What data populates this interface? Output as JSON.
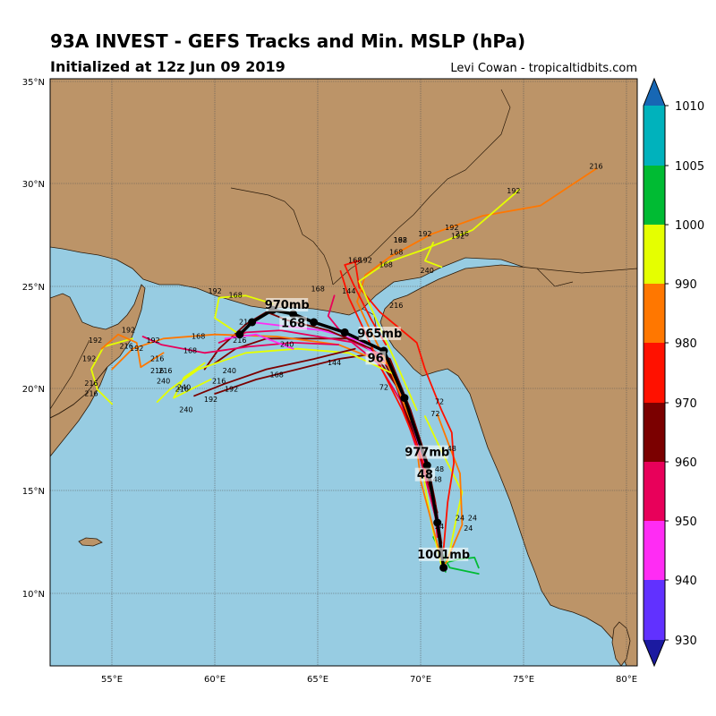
{
  "header": {
    "title": "93A INVEST - GEFS Tracks and Min. MSLP (hPa)",
    "subtitle": "Initialized at 12z Jun 09 2019",
    "credit": "Levi Cowan - tropicaltidbits.com"
  },
  "map": {
    "lon_range": [
      52,
      80.5
    ],
    "lat_range": [
      6.5,
      35.2
    ],
    "lat_ticks": [
      "35°N",
      "30°N",
      "25°N",
      "20°N",
      "15°N",
      "10°N"
    ],
    "lon_ticks": [
      "55°E",
      "60°E",
      "65°E",
      "70°E",
      "75°E",
      "80°E"
    ],
    "colors": {
      "ocean": "#97cce2",
      "land": "#bc9468",
      "border": "#3a2a1a",
      "grid": "#555555"
    }
  },
  "colorbar": {
    "ticks": [
      "1010",
      "1005",
      "1000",
      "990",
      "980",
      "970",
      "960",
      "950",
      "940",
      "930"
    ],
    "colors": [
      "#1767b4",
      "#00b2bc",
      "#00bb33",
      "#e5ff00",
      "#ff7700",
      "#ff1100",
      "#7b0000",
      "#e8005a",
      "#ff2cf4",
      "#6131ff",
      "#1b1aa0"
    ]
  },
  "mean_track": {
    "labels": [
      {
        "text": "1001mb",
        "lon": 71.1,
        "lat": 11.8
      },
      {
        "text": "48",
        "lon": 70.2,
        "lat": 15.7
      },
      {
        "text": "977mb",
        "lon": 70.3,
        "lat": 16.8
      },
      {
        "text": "96",
        "lon": 67.8,
        "lat": 21.4
      },
      {
        "text": "965mb",
        "lon": 68.0,
        "lat": 22.6
      },
      {
        "text": "168",
        "lon": 63.8,
        "lat": 23.1
      },
      {
        "text": "970mb",
        "lon": 63.5,
        "lat": 24.0
      }
    ],
    "points": [
      {
        "lon": 71.1,
        "lat": 11.3
      },
      {
        "lon": 70.8,
        "lat": 13.5
      },
      {
        "lon": 70.3,
        "lat": 16.3
      },
      {
        "lon": 69.2,
        "lat": 19.6
      },
      {
        "lon": 68.2,
        "lat": 21.9
      },
      {
        "lon": 66.3,
        "lat": 22.8
      },
      {
        "lon": 64.8,
        "lat": 23.3
      },
      {
        "lon": 63.8,
        "lat": 23.7
      },
      {
        "lon": 62.8,
        "lat": 23.9
      },
      {
        "lon": 61.8,
        "lat": 23.3
      },
      {
        "lon": 61.2,
        "lat": 22.7
      }
    ]
  },
  "track_labels": [
    {
      "text": "24",
      "lon": 71.9,
      "lat": 13.6
    },
    {
      "text": "24",
      "lon": 72.5,
      "lat": 13.6
    },
    {
      "text": "24",
      "lon": 72.3,
      "lat": 13.1
    },
    {
      "text": "24",
      "lon": 70.9,
      "lat": 13.2
    },
    {
      "text": "48",
      "lon": 71.5,
      "lat": 17.0
    },
    {
      "text": "48",
      "lon": 70.9,
      "lat": 16.0
    },
    {
      "text": "48",
      "lon": 70.8,
      "lat": 15.5
    },
    {
      "text": "72",
      "lon": 70.7,
      "lat": 18.7
    },
    {
      "text": "72",
      "lon": 70.9,
      "lat": 19.3
    },
    {
      "text": "72",
      "lon": 68.2,
      "lat": 20.0
    },
    {
      "text": "144",
      "lon": 65.8,
      "lat": 21.2
    },
    {
      "text": "144",
      "lon": 66.5,
      "lat": 24.7
    },
    {
      "text": "168",
      "lon": 65.0,
      "lat": 24.8
    },
    {
      "text": "168",
      "lon": 61.0,
      "lat": 24.5
    },
    {
      "text": "168",
      "lon": 59.2,
      "lat": 22.5
    },
    {
      "text": "168",
      "lon": 58.8,
      "lat": 21.8
    },
    {
      "text": "168",
      "lon": 63.0,
      "lat": 20.6
    },
    {
      "text": "168",
      "lon": 66.8,
      "lat": 26.2
    },
    {
      "text": "168",
      "lon": 68.3,
      "lat": 26.0
    },
    {
      "text": "168",
      "lon": 69.0,
      "lat": 27.2
    },
    {
      "text": "168",
      "lon": 68.8,
      "lat": 26.6
    },
    {
      "text": "192",
      "lon": 60.0,
      "lat": 24.7
    },
    {
      "text": "192",
      "lon": 57.0,
      "lat": 22.3
    },
    {
      "text": "192",
      "lon": 55.8,
      "lat": 22.8
    },
    {
      "text": "192",
      "lon": 54.2,
      "lat": 22.3
    },
    {
      "text": "192",
      "lon": 53.9,
      "lat": 21.4
    },
    {
      "text": "192",
      "lon": 56.2,
      "lat": 21.9
    },
    {
      "text": "192",
      "lon": 59.8,
      "lat": 19.4
    },
    {
      "text": "192",
      "lon": 60.8,
      "lat": 19.9
    },
    {
      "text": "192",
      "lon": 69.0,
      "lat": 27.2
    },
    {
      "text": "192",
      "lon": 71.5,
      "lat": 27.8
    },
    {
      "text": "192",
      "lon": 71.8,
      "lat": 27.4
    },
    {
      "text": "192",
      "lon": 70.2,
      "lat": 27.5
    },
    {
      "text": "192",
      "lon": 74.5,
      "lat": 29.6
    },
    {
      "text": "192",
      "lon": 67.3,
      "lat": 26.2
    },
    {
      "text": "216",
      "lon": 78.5,
      "lat": 30.8
    },
    {
      "text": "216",
      "lon": 72.0,
      "lat": 27.5
    },
    {
      "text": "216",
      "lon": 68.8,
      "lat": 24.0
    },
    {
      "text": "216",
      "lon": 55.7,
      "lat": 22.0
    },
    {
      "text": "216",
      "lon": 57.6,
      "lat": 20.8
    },
    {
      "text": "216",
      "lon": 57.2,
      "lat": 20.8
    },
    {
      "text": "216",
      "lon": 54.0,
      "lat": 20.2
    },
    {
      "text": "216",
      "lon": 54.0,
      "lat": 19.7
    },
    {
      "text": "216",
      "lon": 61.5,
      "lat": 23.2
    },
    {
      "text": "216",
      "lon": 61.2,
      "lat": 22.3
    },
    {
      "text": "216",
      "lon": 60.2,
      "lat": 20.3
    },
    {
      "text": "216",
      "lon": 58.4,
      "lat": 19.9
    },
    {
      "text": "216",
      "lon": 57.2,
      "lat": 21.4
    },
    {
      "text": "240",
      "lon": 57.5,
      "lat": 20.3
    },
    {
      "text": "240",
      "lon": 58.5,
      "lat": 20.0
    },
    {
      "text": "240",
      "lon": 58.6,
      "lat": 18.9
    },
    {
      "text": "240",
      "lon": 60.7,
      "lat": 20.8
    },
    {
      "text": "240",
      "lon": 63.5,
      "lat": 22.1
    },
    {
      "text": "240",
      "lon": 70.3,
      "lat": 25.7
    }
  ],
  "tracks": [
    {
      "color": "#00bb33",
      "pts": [
        [
          71.2,
          11.1
        ],
        [
          71.0,
          12.0
        ],
        [
          70.6,
          12.8
        ],
        [
          71.4,
          11.3
        ],
        [
          72.8,
          11.0
        ]
      ]
    },
    {
      "color": "#00bb33",
      "pts": [
        [
          71.0,
          11.5
        ],
        [
          71.8,
          11.7
        ],
        [
          72.6,
          11.8
        ],
        [
          72.8,
          11.3
        ]
      ]
    },
    {
      "color": "#e5ff00",
      "pts": [
        [
          71.0,
          11.4
        ],
        [
          70.5,
          13.5
        ],
        [
          70.2,
          15.3
        ],
        [
          70.0,
          17.0
        ]
      ]
    },
    {
      "color": "#e5ff00",
      "pts": [
        [
          71.3,
          11.6
        ],
        [
          71.7,
          13.6
        ],
        [
          72.0,
          15.0
        ],
        [
          71.0,
          17.0
        ],
        [
          70.2,
          18.7
        ]
      ]
    },
    {
      "color": "#ff7700",
      "pts": [
        [
          71.0,
          11.7
        ],
        [
          70.5,
          13.6
        ],
        [
          70.0,
          15.5
        ],
        [
          69.8,
          17.2
        ],
        [
          69.5,
          18.5
        ]
      ]
    },
    {
      "color": "#ff7700",
      "pts": [
        [
          71.2,
          11.5
        ],
        [
          72.0,
          13.4
        ],
        [
          71.9,
          15.9
        ],
        [
          71.4,
          17.2
        ],
        [
          70.8,
          18.8
        ]
      ]
    },
    {
      "color": "#ff1100",
      "pts": [
        [
          71.0,
          12.0
        ],
        [
          70.8,
          13.5
        ],
        [
          70.4,
          15.8
        ],
        [
          69.8,
          17.8
        ],
        [
          69.2,
          19.2
        ]
      ]
    },
    {
      "color": "#ff1100",
      "pts": [
        [
          71.1,
          12.2
        ],
        [
          71.3,
          14.5
        ],
        [
          71.6,
          16.4
        ],
        [
          71.5,
          17.9
        ],
        [
          71.0,
          19.0
        ],
        [
          70.2,
          21.0
        ],
        [
          69.8,
          22.3
        ],
        [
          68.0,
          23.8
        ],
        [
          67.0,
          25.0
        ],
        [
          66.8,
          26.3
        ]
      ]
    },
    {
      "color": "#7b0000",
      "pts": [
        [
          71.0,
          12.5
        ],
        [
          70.7,
          14.5
        ],
        [
          70.3,
          16.5
        ],
        [
          69.5,
          19.0
        ],
        [
          68.5,
          21.5
        ],
        [
          66.5,
          22.5
        ],
        [
          64.5,
          22.5
        ],
        [
          62.5,
          22.5
        ],
        [
          61.0,
          22.0
        ],
        [
          60.0,
          21.3
        ]
      ]
    },
    {
      "color": "#7b0000",
      "pts": [
        [
          70.9,
          13.0
        ],
        [
          70.4,
          15.0
        ],
        [
          69.8,
          17.5
        ],
        [
          69.0,
          19.8
        ],
        [
          68.0,
          21.8
        ],
        [
          66.0,
          21.5
        ],
        [
          64.0,
          21.0
        ],
        [
          62.0,
          20.5
        ],
        [
          60.0,
          19.8
        ]
      ]
    },
    {
      "color": "#e8005a",
      "pts": [
        [
          70.8,
          12.8
        ],
        [
          70.6,
          14.8
        ],
        [
          70.0,
          17.0
        ],
        [
          69.2,
          19.5
        ],
        [
          68.3,
          21.6
        ],
        [
          66.8,
          22.3
        ],
        [
          65.0,
          22.6
        ],
        [
          63.2,
          22.9
        ],
        [
          61.5,
          22.8
        ],
        [
          60.2,
          22.3
        ]
      ]
    },
    {
      "color": "#ff2cf4",
      "pts": [
        [
          70.9,
          13.3
        ],
        [
          70.3,
          16.0
        ],
        [
          69.5,
          18.6
        ],
        [
          68.6,
          21.0
        ],
        [
          67.0,
          22.4
        ],
        [
          65.2,
          22.9
        ],
        [
          63.5,
          23.1
        ],
        [
          61.8,
          23.3
        ]
      ]
    },
    {
      "color": "#e8005a",
      "pts": [
        [
          70.7,
          13.8
        ],
        [
          70.0,
          16.5
        ],
        [
          69.0,
          19.5
        ],
        [
          67.9,
          21.3
        ],
        [
          66.3,
          22.6
        ],
        [
          65.5,
          23.6
        ],
        [
          65.8,
          24.6
        ]
      ]
    },
    {
      "color": "#7b0000",
      "pts": [
        [
          70.8,
          14.0
        ],
        [
          69.9,
          17.0
        ],
        [
          68.8,
          20.2
        ],
        [
          67.6,
          22.0
        ],
        [
          65.5,
          22.9
        ],
        [
          63.5,
          23.4
        ],
        [
          62.5,
          23.8
        ],
        [
          61.5,
          23.2
        ],
        [
          60.2,
          22.0
        ],
        [
          59.5,
          21.0
        ]
      ]
    },
    {
      "color": "#ff1100",
      "pts": [
        [
          70.7,
          14.4
        ],
        [
          70.0,
          16.8
        ],
        [
          69.1,
          19.0
        ],
        [
          68.1,
          21.0
        ],
        [
          67.2,
          23.0
        ],
        [
          66.5,
          24.5
        ],
        [
          66.1,
          25.8
        ]
      ]
    },
    {
      "color": "#ff7700",
      "pts": [
        [
          69.5,
          18.5
        ],
        [
          68.5,
          21.0
        ],
        [
          67.5,
          23.0
        ],
        [
          66.9,
          24.3
        ],
        [
          67.3,
          25.6
        ],
        [
          68.5,
          26.5
        ],
        [
          70.5,
          27.6
        ],
        [
          73.0,
          28.5
        ],
        [
          75.8,
          29.0
        ],
        [
          78.5,
          30.8
        ]
      ]
    },
    {
      "color": "#e5ff00",
      "pts": [
        [
          69.8,
          19.0
        ],
        [
          68.8,
          21.3
        ],
        [
          67.8,
          23.5
        ],
        [
          67.0,
          25.3
        ],
        [
          68.3,
          26.2
        ],
        [
          70.0,
          26.8
        ],
        [
          72.5,
          27.8
        ],
        [
          74.8,
          29.8
        ]
      ]
    },
    {
      "color": "#ff7700",
      "pts": [
        [
          68.5,
          21.2
        ],
        [
          66.0,
          22.2
        ],
        [
          63.0,
          22.6
        ],
        [
          60.0,
          22.7
        ],
        [
          57.5,
          22.5
        ],
        [
          56.0,
          22.0
        ],
        [
          55.0,
          21.0
        ]
      ]
    },
    {
      "color": "#e5ff00",
      "pts": [
        [
          68.6,
          20.8
        ],
        [
          66.5,
          21.8
        ],
        [
          64.0,
          22.0
        ],
        [
          61.5,
          21.8
        ],
        [
          59.2,
          21.0
        ],
        [
          57.8,
          20.0
        ],
        [
          57.2,
          19.4
        ]
      ]
    },
    {
      "color": "#e5ff00",
      "pts": [
        [
          61.2,
          22.7
        ],
        [
          60.0,
          23.5
        ],
        [
          60.2,
          24.5
        ],
        [
          61.5,
          24.6
        ],
        [
          62.8,
          24.2
        ]
      ]
    },
    {
      "color": "#e5ff00",
      "pts": [
        [
          56.0,
          22.5
        ],
        [
          54.6,
          22.1
        ],
        [
          54.0,
          21.0
        ],
        [
          54.3,
          20.0
        ],
        [
          55.0,
          19.3
        ]
      ]
    },
    {
      "color": "#ff7700",
      "pts": [
        [
          57.5,
          21.8
        ],
        [
          56.4,
          21.1
        ],
        [
          56.2,
          22.3
        ],
        [
          55.3,
          22.7
        ],
        [
          54.5,
          22.0
        ]
      ]
    },
    {
      "color": "#e8005a",
      "pts": [
        [
          66.0,
          22.2
        ],
        [
          63.8,
          22.3
        ],
        [
          61.6,
          22.1
        ],
        [
          59.5,
          21.8
        ],
        [
          57.4,
          22.2
        ],
        [
          56.5,
          22.6
        ]
      ]
    },
    {
      "color": "#7b0000",
      "pts": [
        [
          66.8,
          22.0
        ],
        [
          64.8,
          21.5
        ],
        [
          62.5,
          21.0
        ],
        [
          60.5,
          20.3
        ],
        [
          59.0,
          19.7
        ]
      ]
    },
    {
      "color": "#e5ff00",
      "pts": [
        [
          59.8,
          20.5
        ],
        [
          59.0,
          20.1
        ],
        [
          58.0,
          19.6
        ],
        [
          58.5,
          20.6
        ],
        [
          59.5,
          21.3
        ]
      ]
    },
    {
      "color": "#ff2cf4",
      "pts": [
        [
          63.8,
          22.0
        ],
        [
          62.0,
          22.7
        ],
        [
          60.5,
          22.5
        ]
      ]
    },
    {
      "color": "#ff1100",
      "pts": [
        [
          68.3,
          22.2
        ],
        [
          67.6,
          23.4
        ],
        [
          66.7,
          25.2
        ],
        [
          66.3,
          26.1
        ],
        [
          67.0,
          26.3
        ]
      ]
    },
    {
      "color": "#e5ff00",
      "pts": [
        [
          70.6,
          27.2
        ],
        [
          70.2,
          26.3
        ],
        [
          71.0,
          26.0
        ]
      ]
    }
  ]
}
